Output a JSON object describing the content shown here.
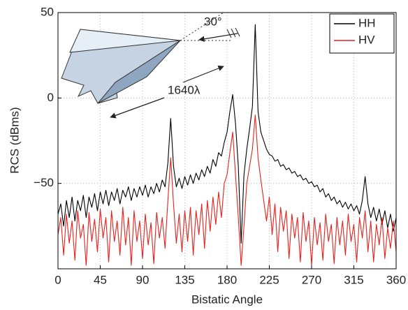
{
  "chart_data": {
    "type": "line",
    "xlabel": "Bistatic Angle",
    "ylabel": "RCS (dBms)",
    "annotations": [
      "30°",
      "1640λ"
    ],
    "x": [
      0,
      3,
      6,
      9,
      12,
      15,
      18,
      21,
      24,
      27,
      30,
      33,
      36,
      39,
      42,
      45,
      48,
      51,
      54,
      57,
      60,
      63,
      66,
      69,
      72,
      75,
      78,
      81,
      84,
      87,
      90,
      93,
      96,
      99,
      102,
      105,
      108,
      111,
      114,
      117,
      120,
      123,
      126,
      129,
      132,
      135,
      138,
      141,
      144,
      147,
      150,
      153,
      156,
      159,
      162,
      165,
      168,
      171,
      174,
      177,
      180,
      183,
      186,
      189,
      192,
      195,
      198,
      201,
      204,
      207,
      210,
      213,
      216,
      219,
      222,
      225,
      228,
      231,
      234,
      237,
      240,
      243,
      246,
      249,
      252,
      255,
      258,
      261,
      264,
      267,
      270,
      273,
      276,
      279,
      282,
      285,
      288,
      291,
      294,
      297,
      300,
      303,
      306,
      309,
      312,
      315,
      318,
      321,
      324,
      327,
      330,
      333,
      336,
      339,
      342,
      345,
      348,
      351,
      354,
      357,
      360
    ],
    "series": [
      {
        "name": "HH",
        "color": "#000000",
        "values": [
          -68,
          -62,
          -75,
          -60,
          -70,
          -58,
          -72,
          -60,
          -66,
          -57,
          -70,
          -58,
          -64,
          -56,
          -66,
          -55,
          -62,
          -54,
          -63,
          -55,
          -60,
          -53,
          -62,
          -54,
          -58,
          -52,
          -60,
          -53,
          -58,
          -52,
          -57,
          -51,
          -58,
          -52,
          -56,
          -50,
          -55,
          -48,
          -52,
          -38,
          -12,
          -40,
          -52,
          -47,
          -53,
          -46,
          -51,
          -45,
          -50,
          -44,
          -48,
          -42,
          -46,
          -40,
          -44,
          -36,
          -40,
          -32,
          -34,
          -26,
          -20,
          -8,
          2,
          -15,
          -40,
          -85,
          -45,
          -30,
          -18,
          -5,
          43,
          -8,
          -20,
          -25,
          -30,
          -33,
          -34,
          -37,
          -36,
          -40,
          -39,
          -42,
          -41,
          -44,
          -43,
          -46,
          -45,
          -48,
          -47,
          -50,
          -49,
          -52,
          -51,
          -55,
          -53,
          -58,
          -56,
          -60,
          -58,
          -62,
          -60,
          -64,
          -61,
          -65,
          -62,
          -66,
          -63,
          -68,
          -60,
          -46,
          -62,
          -70,
          -64,
          -72,
          -65,
          -74,
          -66,
          -76,
          -68,
          -78,
          -70
        ]
      },
      {
        "name": "HV",
        "color": "#e8201c",
        "values": [
          -80,
          -70,
          -92,
          -68,
          -85,
          -72,
          -95,
          -66,
          -82,
          -74,
          -98,
          -67,
          -84,
          -71,
          -90,
          -65,
          -82,
          -70,
          -96,
          -66,
          -84,
          -72,
          -92,
          -64,
          -86,
          -70,
          -98,
          -66,
          -84,
          -72,
          -94,
          -68,
          -86,
          -73,
          -97,
          -67,
          -82,
          -70,
          -88,
          -60,
          -35,
          -62,
          -85,
          -68,
          -90,
          -66,
          -84,
          -64,
          -92,
          -66,
          -80,
          -62,
          -88,
          -60,
          -78,
          -58,
          -74,
          -55,
          -70,
          -50,
          -45,
          -32,
          -20,
          -45,
          -70,
          -98,
          -75,
          -50,
          -40,
          -30,
          -10,
          -35,
          -48,
          -60,
          -72,
          -58,
          -80,
          -62,
          -90,
          -64,
          -78,
          -66,
          -94,
          -68,
          -82,
          -70,
          -96,
          -67,
          -84,
          -72,
          -98,
          -70,
          -86,
          -73,
          -95,
          -68,
          -84,
          -74,
          -97,
          -70,
          -86,
          -72,
          -92,
          -68,
          -84,
          -74,
          -96,
          -70,
          -82,
          -66,
          -90,
          -72,
          -96,
          -74,
          -86,
          -70,
          -94,
          -76,
          -88,
          -72,
          -90
        ]
      }
    ],
    "xlim": [
      0,
      360
    ],
    "xticks": [
      0,
      45,
      90,
      135,
      180,
      225,
      270,
      315,
      360
    ],
    "ylim": [
      -100,
      50
    ],
    "yticks": [
      {
        "value": -50,
        "label": "−50"
      },
      0,
      50
    ],
    "grid": true,
    "legend": "upper right"
  }
}
